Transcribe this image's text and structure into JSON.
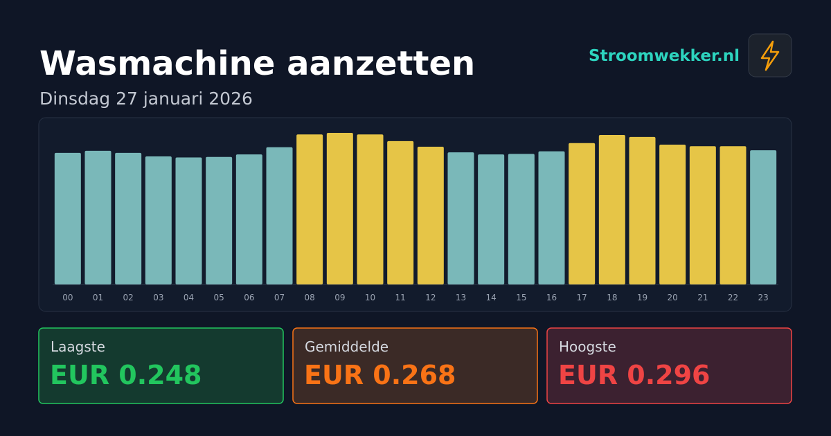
{
  "header": {
    "title": "Wasmachine aanzetten",
    "subtitle": "Dinsdag 27 januari 2026",
    "brand": "Stroomwekker.nl"
  },
  "chart_data": {
    "type": "bar",
    "categories": [
      "00",
      "01",
      "02",
      "03",
      "04",
      "05",
      "06",
      "07",
      "08",
      "09",
      "10",
      "11",
      "12",
      "13",
      "14",
      "15",
      "16",
      "17",
      "18",
      "19",
      "20",
      "21",
      "22",
      "23"
    ],
    "values": [
      0.257,
      0.261,
      0.257,
      0.25,
      0.248,
      0.249,
      0.254,
      0.268,
      0.293,
      0.296,
      0.293,
      0.28,
      0.269,
      0.258,
      0.254,
      0.255,
      0.26,
      0.276,
      0.292,
      0.288,
      0.273,
      0.27,
      0.27,
      0.262
    ],
    "colors": [
      "#7ab8b9",
      "#7ab8b9",
      "#7ab8b9",
      "#7ab8b9",
      "#7ab8b9",
      "#7ab8b9",
      "#7ab8b9",
      "#7ab8b9",
      "#e6c547",
      "#e6c547",
      "#e6c547",
      "#e6c547",
      "#e6c547",
      "#7ab8b9",
      "#7ab8b9",
      "#7ab8b9",
      "#7ab8b9",
      "#e6c547",
      "#e6c547",
      "#e6c547",
      "#e6c547",
      "#e6c547",
      "#e6c547",
      "#7ab8b9"
    ]
  },
  "stats": [
    {
      "label": "Laagste",
      "value": "EUR 0.248",
      "color": "#22c55e",
      "fill": "#143a2f"
    },
    {
      "label": "Gemiddelde",
      "value": "EUR 0.268",
      "color": "#f97316",
      "fill": "#3b2a26"
    },
    {
      "label": "Hoogste",
      "value": "EUR 0.296",
      "color": "#ef4444",
      "fill": "#3c2130"
    }
  ]
}
